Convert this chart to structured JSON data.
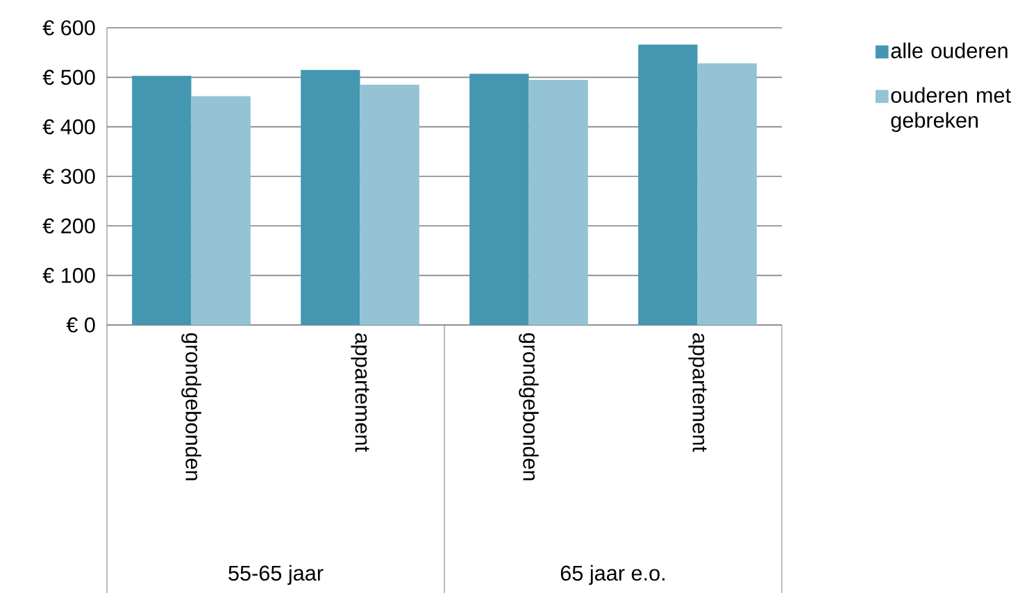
{
  "chart_data": {
    "type": "bar",
    "categories": [
      "grondgebonden",
      "appartement",
      "grondgebonden",
      "appartement"
    ],
    "series": [
      {
        "name": "alle ouderen",
        "color": "#4397b0",
        "values": [
          503,
          515,
          507,
          566
        ]
      },
      {
        "name": "ouderen met gebreken",
        "color": "#93c3d5",
        "values": [
          462,
          485,
          495,
          528
        ]
      }
    ],
    "ylim": [
      0,
      600
    ],
    "yticks": [
      {
        "value": 0,
        "label": "€ 0"
      },
      {
        "value": 100,
        "label": "€ 100"
      },
      {
        "value": 200,
        "label": "€ 200"
      },
      {
        "value": 300,
        "label": "€ 300"
      },
      {
        "value": 400,
        "label": "€ 400"
      },
      {
        "value": 500,
        "label": "€ 500"
      },
      {
        "value": 600,
        "label": "€ 600"
      }
    ],
    "grid": "y",
    "legend": "right",
    "annotations": [
      "55-65 jaar",
      "65 jaar e.o."
    ]
  }
}
